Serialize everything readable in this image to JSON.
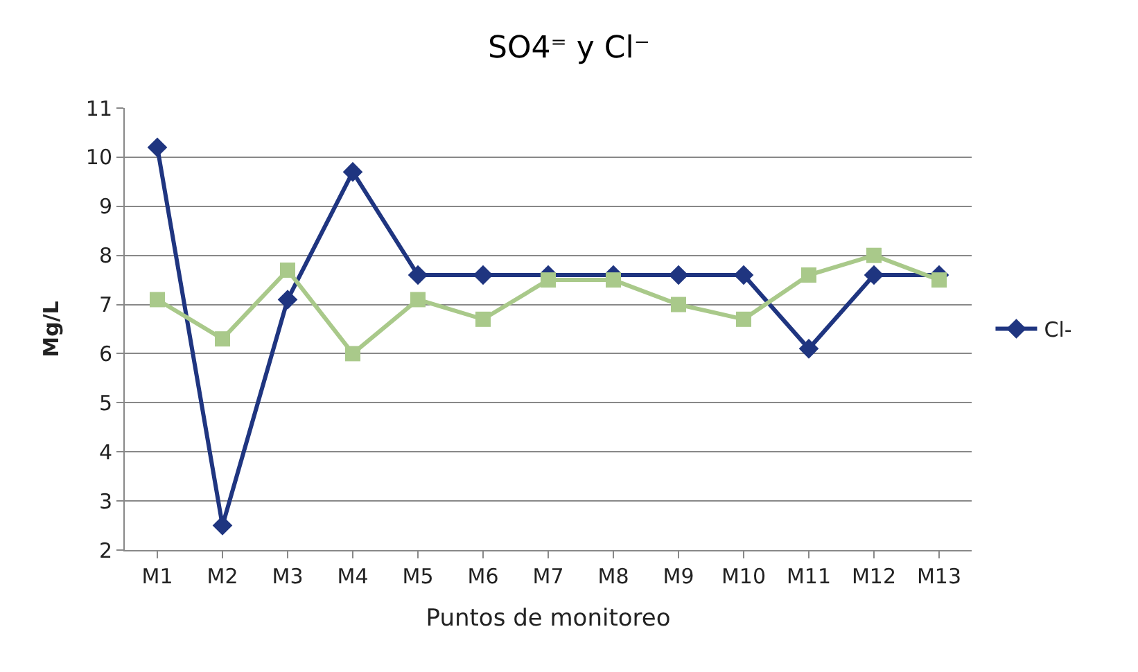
{
  "chart_data": {
    "type": "line",
    "title": "SO4⁼ y Cl⁻",
    "xlabel": "Puntos de monitoreo",
    "ylabel": "Mg/L",
    "categories": [
      "M1",
      "M2",
      "M3",
      "M4",
      "M5",
      "M6",
      "M7",
      "M8",
      "M9",
      "M10",
      "M11",
      "M12",
      "M13"
    ],
    "series": [
      {
        "name": "Cl-",
        "color": "#1f3580",
        "marker": "diamond",
        "values": [
          10.2,
          2.5,
          7.1,
          9.7,
          7.6,
          7.6,
          7.6,
          7.6,
          7.6,
          7.6,
          6.1,
          7.6,
          7.6
        ]
      },
      {
        "color": "#a9c98a",
        "marker": "square",
        "values": [
          7.1,
          6.3,
          7.7,
          6.0,
          7.1,
          6.7,
          7.5,
          7.5,
          7.0,
          6.7,
          7.6,
          8.0,
          7.5
        ]
      }
    ],
    "ylim": [
      2,
      11
    ],
    "yticks": [
      2,
      3,
      4,
      5,
      6,
      7,
      8,
      9,
      10,
      11
    ],
    "grid": "y",
    "legend": "right"
  }
}
